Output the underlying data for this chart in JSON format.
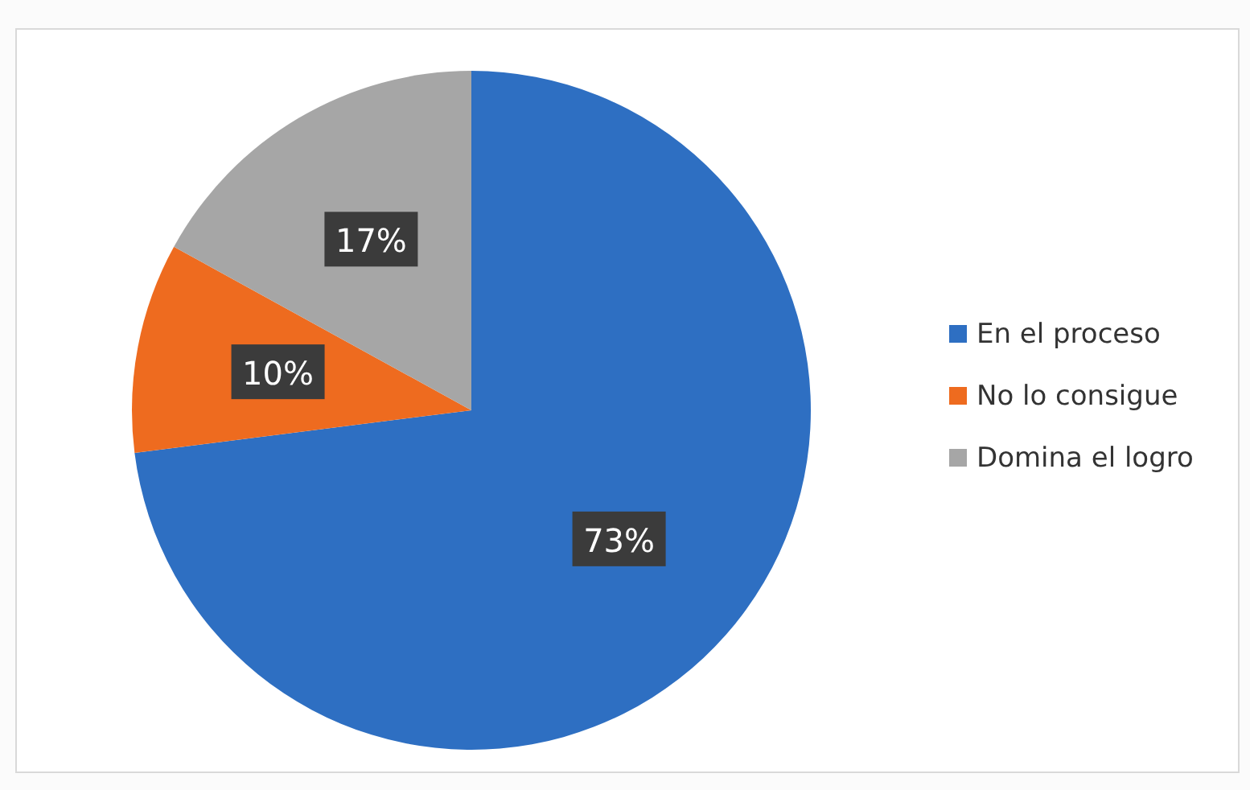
{
  "chart_data": {
    "type": "pie",
    "categories": [
      "En el proceso",
      "No lo consigue",
      "Domina el logro"
    ],
    "values": [
      73,
      10,
      17
    ],
    "colors": [
      "#2e6fc2",
      "#ee6b1f",
      "#a6a6a6"
    ],
    "value_labels": [
      "73%",
      "10%",
      "17%"
    ],
    "legend": "right"
  }
}
